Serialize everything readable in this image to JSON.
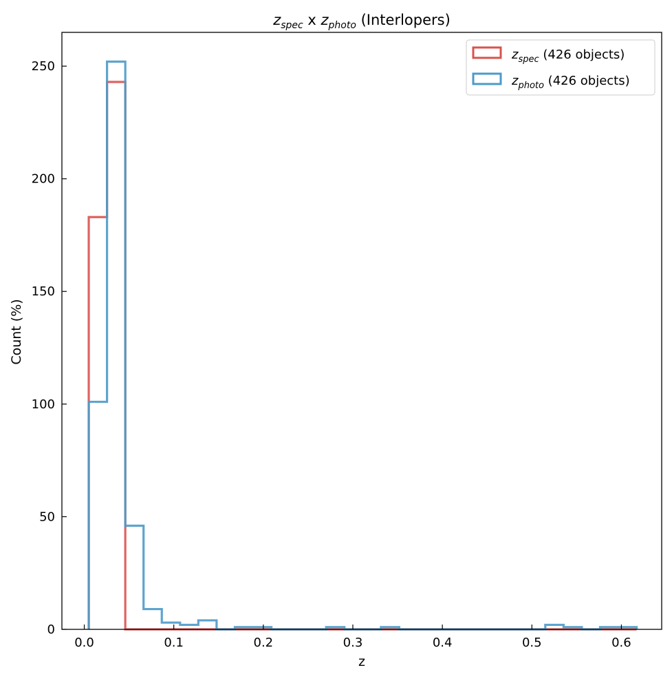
{
  "chart_data": {
    "type": "histogram",
    "title": {
      "z1": "z",
      "s1": "spec",
      "mid": " x ",
      "z2": "z",
      "s2": "photo",
      "tail": " (Interlopers)"
    },
    "xlabel": "z",
    "ylabel": "Count (%)",
    "xlim": [
      -0.025,
      0.645
    ],
    "ylim": [
      0,
      265
    ],
    "xticks": [
      0.0,
      0.1,
      0.2,
      0.3,
      0.4,
      0.5,
      0.6
    ],
    "xtick_labels": [
      "0.0",
      "0.1",
      "0.2",
      "0.3",
      "0.4",
      "0.5",
      "0.6"
    ],
    "yticks": [
      0,
      50,
      100,
      150,
      200,
      250
    ],
    "ytick_labels": [
      "0",
      "50",
      "100",
      "150",
      "200",
      "250"
    ],
    "grid": false,
    "legend_position": "top-right",
    "series": [
      {
        "name": "z_spec",
        "legend": {
          "z": "z",
          "sub": "spec",
          "rest": " (426 objects)"
        },
        "color": "#d9534f",
        "bin_edges": [
          0.005,
          0.0254,
          0.0458,
          0.0662,
          0.0866,
          0.107,
          0.1274,
          0.1478,
          0.1682,
          0.1886,
          0.209,
          0.2294,
          0.2498,
          0.2702,
          0.2906,
          0.311,
          0.3314,
          0.3518,
          0.3722,
          0.3926,
          0.413,
          0.4334,
          0.4538,
          0.4742,
          0.4946,
          0.515,
          0.5354,
          0.5558,
          0.5762,
          0.5966,
          0.617
        ],
        "counts": [
          183,
          243,
          0,
          0,
          0,
          0,
          0,
          0,
          0,
          0,
          0,
          0,
          0,
          0,
          0,
          0,
          0,
          0,
          0,
          0,
          0,
          0,
          0,
          0,
          0,
          0,
          0,
          0,
          0,
          0
        ]
      },
      {
        "name": "z_photo",
        "legend": {
          "z": "z",
          "sub": "photo",
          "rest": " (426 objects)"
        },
        "color": "#4c9ac9",
        "bin_edges": [
          0.005,
          0.0254,
          0.0458,
          0.0662,
          0.0866,
          0.107,
          0.1274,
          0.1478,
          0.1682,
          0.1886,
          0.209,
          0.2294,
          0.2498,
          0.2702,
          0.2906,
          0.311,
          0.3314,
          0.3518,
          0.3722,
          0.3926,
          0.413,
          0.4334,
          0.4538,
          0.4742,
          0.4946,
          0.515,
          0.5354,
          0.5558,
          0.5762,
          0.5966,
          0.617
        ],
        "counts": [
          101,
          252,
          46,
          9,
          3,
          2,
          4,
          0,
          1,
          1,
          0,
          0,
          0,
          1,
          0,
          0,
          1,
          0,
          0,
          0,
          0,
          0,
          0,
          0,
          0,
          2,
          1,
          0,
          1,
          1
        ]
      }
    ]
  }
}
